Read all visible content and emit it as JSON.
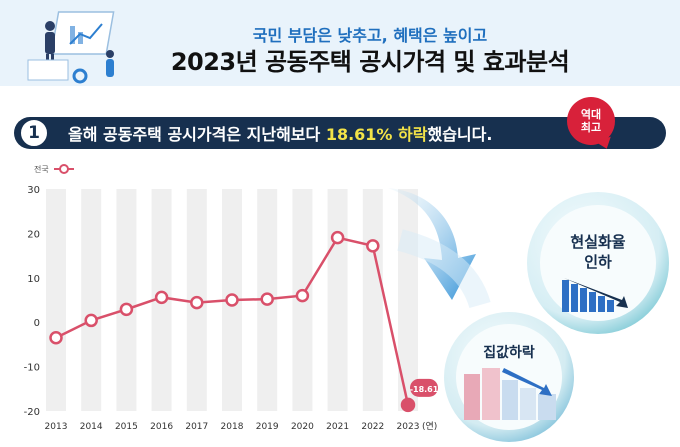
{
  "header": {
    "subtitle": "국민 부담은 낮추고, 혜택은 높이고",
    "title": "2023년 공동주택 공시가격 및 효과분석"
  },
  "banner": {
    "number": "1",
    "text_before": "올해 공동주택 공시가격은 지난해보다 ",
    "text_highlight": "18.61% 하락",
    "text_after": "했습니다.",
    "badge_line1": "역대",
    "badge_line2": "최고"
  },
  "callouts": {
    "circle1_line1": "현실화율",
    "circle1_line2": "인하",
    "circle2": "집값하락"
  },
  "colors": {
    "line": "#d9506a",
    "bar": "#efefef",
    "banner": "#17304f",
    "highlight": "#f3e348",
    "label_badge": "#d8213a"
  },
  "chart_data": {
    "type": "line",
    "legend": "전국",
    "legend_placement": "top-left",
    "x": [
      "2013",
      "2014",
      "2015",
      "2016",
      "2017",
      "2018",
      "2019",
      "2020",
      "2021",
      "2022",
      "2023"
    ],
    "x_unit": "(연)",
    "series": [
      {
        "name": "전국",
        "values": [
          -3.5,
          0.4,
          2.9,
          5.6,
          4.4,
          5.0,
          5.2,
          5.99,
          19.05,
          17.2,
          -18.61
        ]
      }
    ],
    "ylim": [
      -20,
      30
    ],
    "yticks": [
      -20,
      -10,
      0,
      10,
      20,
      30
    ],
    "grid": false,
    "annotations": [
      {
        "x": "2023",
        "text": "-18.61"
      }
    ]
  }
}
